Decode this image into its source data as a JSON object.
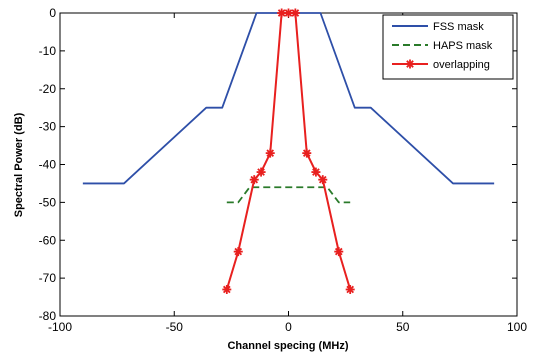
{
  "chart_data": {
    "type": "line",
    "xlabel": "Channel specing (MHz)",
    "ylabel": "Spectral Power (dB)",
    "xlim": [
      -100,
      100
    ],
    "ylim": [
      -80,
      0
    ],
    "xticks": [
      -100,
      -50,
      0,
      50,
      100
    ],
    "yticks": [
      0,
      -10,
      -20,
      -30,
      -40,
      -50,
      -60,
      -70,
      -80
    ],
    "grid": false,
    "legend_position": "top-right",
    "series": [
      {
        "name": "FSS mask",
        "color": "#2e4fa8",
        "style": "solid",
        "marker": "none",
        "x": [
          -90,
          -72,
          -36,
          -29,
          -14,
          14,
          29,
          36,
          72,
          90
        ],
        "y": [
          -45,
          -45,
          -25,
          -25,
          0,
          0,
          -25,
          -25,
          -45,
          -45
        ]
      },
      {
        "name": "HAPS mask",
        "color": "#2a7a2a",
        "style": "dashed",
        "marker": "none",
        "x": [
          -27,
          -22,
          -17,
          17,
          22,
          27
        ],
        "y": [
          -50,
          -50,
          -46,
          -46,
          -50,
          -50
        ]
      },
      {
        "name": "overlapping",
        "color": "#e8201f",
        "style": "solid",
        "marker": "star",
        "x": [
          -27,
          -22,
          -15,
          -12,
          -8,
          -3,
          0,
          3,
          8,
          12,
          15,
          22,
          27
        ],
        "y": [
          -73,
          -63,
          -44,
          -42,
          -37,
          0,
          0,
          0,
          -37,
          -42,
          -44,
          -63,
          -73
        ]
      }
    ]
  }
}
